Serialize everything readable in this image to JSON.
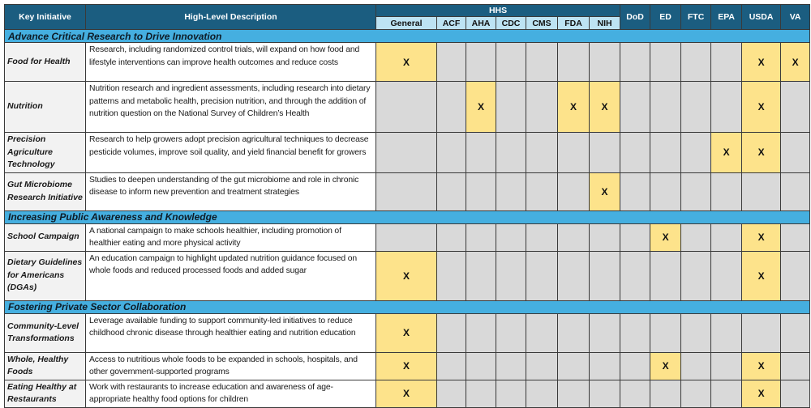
{
  "header": {
    "key_initiative": "Key Initiative",
    "description": "High-Level Description",
    "hhs": "HHS",
    "hhs_agencies": [
      "General",
      "ACF",
      "AHA",
      "CDC",
      "CMS",
      "FDA",
      "NIH"
    ],
    "other_agencies": [
      "DoD",
      "ED",
      "FTC",
      "EPA",
      "USDA",
      "VA"
    ]
  },
  "mark_symbol": "X",
  "colors": {
    "header": "#1b5d80",
    "subheader": "#bde3f3",
    "section": "#45afe0",
    "marked": "#fde38b",
    "unmarked": "#d9d9d9",
    "key": "#f2f2f2"
  },
  "sections": [
    {
      "title": "Advance Critical Research to Drive Innovation",
      "rows": [
        {
          "initiative": "Food for Health",
          "description": "Research, including randomized control trials, will expand on how food and lifestyle interventions can improve health outcomes and reduce costs",
          "marks": [
            "General",
            "USDA",
            "VA"
          ]
        },
        {
          "initiative": "Nutrition",
          "description": "Nutrition research and ingredient assessments, including research into dietary patterns and metabolic health, precision nutrition, and through the addition of nutrition question on the National Survey of Children’s Health",
          "marks": [
            "AHA",
            "FDA",
            "NIH",
            "USDA"
          ]
        },
        {
          "initiative": "Precision Agriculture Technology",
          "description": "Research to help growers adopt precision agricultural techniques to decrease pesticide volumes, improve soil quality, and yield financial benefit for growers",
          "marks": [
            "EPA",
            "USDA"
          ]
        },
        {
          "initiative": "Gut Microbiome Research Initiative",
          "description": "Studies to deepen understanding of the gut microbiome and role in chronic disease to inform new prevention and treatment strategies",
          "marks": [
            "NIH"
          ]
        }
      ]
    },
    {
      "title": "Increasing Public Awareness and Knowledge",
      "rows": [
        {
          "initiative": "School Campaign",
          "description": "A national campaign to make schools healthier, including promotion of healthier eating and more physical activity",
          "marks": [
            "ED",
            "USDA"
          ]
        },
        {
          "initiative": "Dietary Guidelines for Americans (DGAs)",
          "description": "An education campaign to highlight updated nutrition guidance focused on whole foods and reduced processed foods and added sugar",
          "marks": [
            "General",
            "USDA"
          ]
        }
      ]
    },
    {
      "title": "Fostering Private Sector Collaboration",
      "rows": [
        {
          "initiative": "Community-Level Transformations",
          "description": "Leverage available funding to support community-led initiatives to reduce childhood chronic disease through healthier eating and nutrition education",
          "marks": [
            "General"
          ]
        },
        {
          "initiative": "Whole, Healthy Foods",
          "description": "Access to nutritious whole foods to be expanded in schools, hospitals, and other government-supported programs",
          "marks": [
            "General",
            "ED",
            "USDA"
          ]
        },
        {
          "initiative": "Eating Healthy at Restaurants",
          "description": "Work with restaurants to increase education and awareness of age-appropriate healthy food options for children",
          "marks": [
            "General",
            "USDA"
          ]
        }
      ]
    }
  ]
}
